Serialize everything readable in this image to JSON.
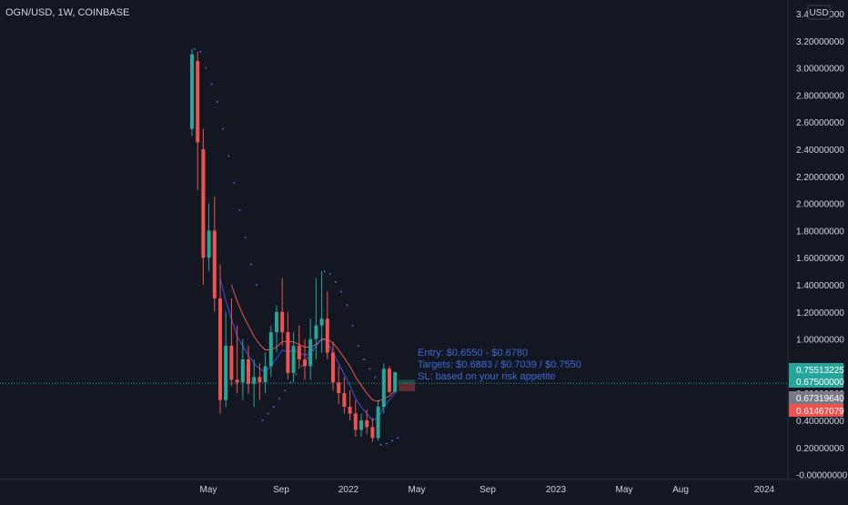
{
  "header": {
    "title": "OGN/USD, 1W, COINBASE"
  },
  "currency_badge": "USD",
  "colors": {
    "background": "#131722",
    "up": "#26a69a",
    "down": "#ef5350",
    "ma_fast": "#3f51e6",
    "ma_slow": "#f2564f",
    "psar": "#3d6ad6",
    "annotation": "#3d6ad6",
    "axis_text": "#d1d4dc"
  },
  "annotation": {
    "lines": [
      "Entry: $0.6550 - $0.6780",
      "Targets: $0.6883 / $0.7039 / $0.7550",
      "SL: based on your risk appetite"
    ]
  },
  "chart_data": {
    "type": "candlestick",
    "title": "OGN/USD, 1W, COINBASE",
    "xlabel": "",
    "ylabel": "",
    "ylim": [
      -0.05,
      3.4
    ],
    "y_ticks": [
      "3.40000000",
      "3.20000000",
      "3.00000000",
      "2.80000000",
      "2.60000000",
      "2.40000000",
      "2.20000000",
      "2.00000000",
      "1.80000000",
      "1.60000000",
      "1.40000000",
      "1.20000000",
      "1.00000000",
      "0.80000000",
      "0.60000000",
      "0.40000000",
      "0.20000000",
      "-0.00000000"
    ],
    "x_ticks": [
      "May",
      "Sep",
      "2022",
      "May",
      "Sep",
      "2023",
      "May",
      "Aug",
      "2024"
    ],
    "price_labels": [
      {
        "value": 0.75513225,
        "text": "0.75513225",
        "color": "#26a69a"
      },
      {
        "value": 0.675,
        "text": "0.67500000",
        "color": "#26a69a"
      },
      {
        "value": 0.6731964,
        "text": "0.67319640",
        "color": "#787b86"
      },
      {
        "value": 0.61467079,
        "text": "0.61467079",
        "color": "#ef5350"
      }
    ],
    "candles": [
      {
        "o": 2.55,
        "h": 3.14,
        "l": 2.5,
        "c": 3.1
      },
      {
        "o": 3.05,
        "h": 3.12,
        "l": 2.1,
        "c": 2.45
      },
      {
        "o": 2.4,
        "h": 2.55,
        "l": 1.4,
        "c": 1.6
      },
      {
        "o": 1.6,
        "h": 2.0,
        "l": 1.5,
        "c": 1.8
      },
      {
        "o": 1.8,
        "h": 2.05,
        "l": 1.2,
        "c": 1.3
      },
      {
        "o": 1.3,
        "h": 1.55,
        "l": 0.45,
        "c": 0.55
      },
      {
        "o": 0.55,
        "h": 1.2,
        "l": 0.5,
        "c": 0.95
      },
      {
        "o": 0.95,
        "h": 1.3,
        "l": 0.65,
        "c": 0.7
      },
      {
        "o": 0.7,
        "h": 1.1,
        "l": 0.6,
        "c": 0.68
      },
      {
        "o": 0.68,
        "h": 1.0,
        "l": 0.55,
        "c": 0.85
      },
      {
        "o": 0.85,
        "h": 0.95,
        "l": 0.6,
        "c": 0.67
      },
      {
        "o": 0.67,
        "h": 0.85,
        "l": 0.5,
        "c": 0.72
      },
      {
        "o": 0.72,
        "h": 0.82,
        "l": 0.55,
        "c": 0.68
      },
      {
        "o": 0.68,
        "h": 0.9,
        "l": 0.6,
        "c": 0.8
      },
      {
        "o": 0.8,
        "h": 1.1,
        "l": 0.72,
        "c": 1.05
      },
      {
        "o": 1.05,
        "h": 1.25,
        "l": 0.9,
        "c": 1.2
      },
      {
        "o": 1.2,
        "h": 1.45,
        "l": 0.95,
        "c": 1.05
      },
      {
        "o": 1.05,
        "h": 1.2,
        "l": 0.7,
        "c": 0.75
      },
      {
        "o": 0.75,
        "h": 1.05,
        "l": 0.68,
        "c": 0.95
      },
      {
        "o": 0.95,
        "h": 1.1,
        "l": 0.78,
        "c": 0.85
      },
      {
        "o": 0.85,
        "h": 1.0,
        "l": 0.7,
        "c": 0.8
      },
      {
        "o": 0.8,
        "h": 1.15,
        "l": 0.7,
        "c": 1.0
      },
      {
        "o": 1.0,
        "h": 1.45,
        "l": 0.85,
        "c": 1.1
      },
      {
        "o": 1.1,
        "h": 1.5,
        "l": 0.9,
        "c": 1.15
      },
      {
        "o": 1.15,
        "h": 1.35,
        "l": 0.85,
        "c": 0.9
      },
      {
        "o": 0.9,
        "h": 0.98,
        "l": 0.62,
        "c": 0.68
      },
      {
        "o": 0.68,
        "h": 0.8,
        "l": 0.52,
        "c": 0.6
      },
      {
        "o": 0.6,
        "h": 0.72,
        "l": 0.45,
        "c": 0.5
      },
      {
        "o": 0.5,
        "h": 0.62,
        "l": 0.4,
        "c": 0.45
      },
      {
        "o": 0.45,
        "h": 0.55,
        "l": 0.28,
        "c": 0.33
      },
      {
        "o": 0.33,
        "h": 0.45,
        "l": 0.28,
        "c": 0.4
      },
      {
        "o": 0.4,
        "h": 0.48,
        "l": 0.3,
        "c": 0.35
      },
      {
        "o": 0.35,
        "h": 0.42,
        "l": 0.24,
        "c": 0.27
      },
      {
        "o": 0.27,
        "h": 0.55,
        "l": 0.25,
        "c": 0.5
      },
      {
        "o": 0.5,
        "h": 0.82,
        "l": 0.45,
        "c": 0.78
      },
      {
        "o": 0.78,
        "h": 0.8,
        "l": 0.6,
        "c": 0.61
      },
      {
        "o": 0.61,
        "h": 0.76,
        "l": 0.6,
        "c": 0.755
      }
    ],
    "series": [
      {
        "values": [
          null,
          null,
          null,
          null,
          null,
          1.45,
          1.28,
          1.15,
          1.02,
          0.95,
          0.88,
          0.82,
          0.78,
          0.76,
          0.8,
          0.86,
          0.92,
          0.9,
          0.92,
          0.9,
          0.88,
          0.9,
          0.95,
          1.0,
          0.98,
          0.9,
          0.82,
          0.74,
          0.66,
          0.56,
          0.5,
          0.45,
          0.4,
          0.42,
          0.5,
          0.55,
          0.6
        ]
      },
      {
        "values": [
          null,
          null,
          null,
          null,
          null,
          null,
          null,
          1.4,
          1.28,
          1.18,
          1.1,
          1.02,
          0.96,
          0.92,
          0.92,
          0.94,
          0.98,
          0.98,
          0.98,
          0.96,
          0.94,
          0.94,
          0.96,
          1.0,
          1.0,
          0.97,
          0.92,
          0.86,
          0.8,
          0.72,
          0.66,
          0.6,
          0.55,
          0.54,
          0.56,
          0.58,
          0.62
        ]
      }
    ],
    "psar": [
      3.14,
      3.12,
      3.0,
      2.88,
      2.75,
      2.55,
      2.35,
      2.15,
      1.95,
      1.75,
      1.55,
      1.4,
      0.4,
      0.45,
      0.5,
      0.56,
      0.62,
      0.68,
      0.74,
      0.8,
      0.86,
      0.92,
      0.98,
      1.5,
      1.48,
      1.42,
      1.35,
      1.25,
      1.1,
      0.95,
      0.85,
      0.78,
      0.72,
      0.22,
      0.23,
      0.25,
      0.27
    ],
    "trade_box": {
      "top": 0.7,
      "mid": 0.6731964,
      "bottom": 0.6146
    }
  }
}
